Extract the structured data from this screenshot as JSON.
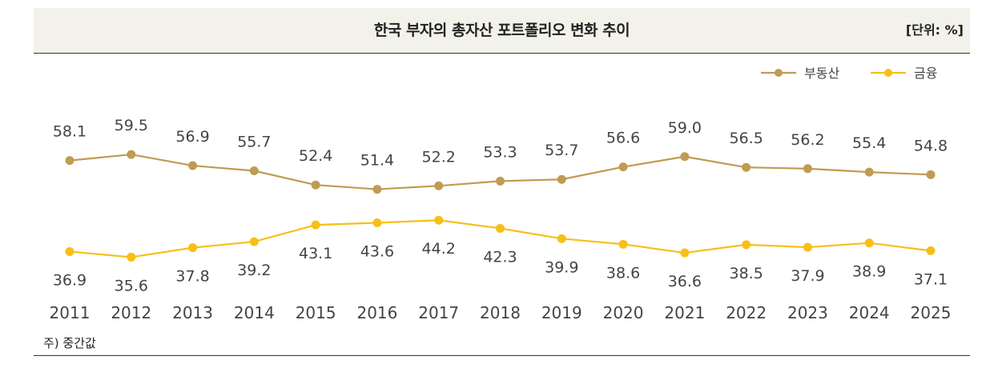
{
  "header": {
    "title": "한국 부자의 총자산 포트폴리오 변화 추이",
    "unit": "[단위: %]"
  },
  "footnote": "주) 중간값",
  "colors": {
    "real_estate": "#c09b52",
    "finance": "#f7bf17",
    "label": "#444444",
    "header_bg": "#f3f2ea"
  },
  "chart_data": {
    "type": "line",
    "title": "한국 부자의 총자산 포트폴리오 변화 추이",
    "unit": "%",
    "categories": [
      "2011",
      "2012",
      "2013",
      "2014",
      "2015",
      "2016",
      "2017",
      "2018",
      "2019",
      "2020",
      "2021",
      "2022",
      "2023",
      "2024",
      "2025"
    ],
    "legend_position": "top-right",
    "series": [
      {
        "name": "부동산",
        "values": [
          58.1,
          59.5,
          56.9,
          55.7,
          52.4,
          51.4,
          52.2,
          53.3,
          53.7,
          56.6,
          59.0,
          56.5,
          56.2,
          55.4,
          54.8
        ],
        "labels": [
          "58.1",
          "59.5",
          "56.9",
          "55.7",
          "52.4",
          "51.4",
          "52.2",
          "53.3",
          "53.7",
          "56.6",
          "59.0",
          "56.5",
          "56.2",
          "55.4",
          "54.8"
        ]
      },
      {
        "name": "금융",
        "values": [
          36.9,
          35.6,
          37.8,
          39.2,
          43.1,
          43.6,
          44.2,
          42.3,
          39.9,
          38.6,
          36.6,
          38.5,
          37.9,
          38.9,
          37.1
        ],
        "labels": [
          "36.9",
          "35.6",
          "37.8",
          "39.2",
          "43.1",
          "43.6",
          "44.2",
          "42.3",
          "39.9",
          "38.6",
          "36.6",
          "38.5",
          "37.9",
          "38.9",
          "37.1"
        ]
      }
    ]
  }
}
